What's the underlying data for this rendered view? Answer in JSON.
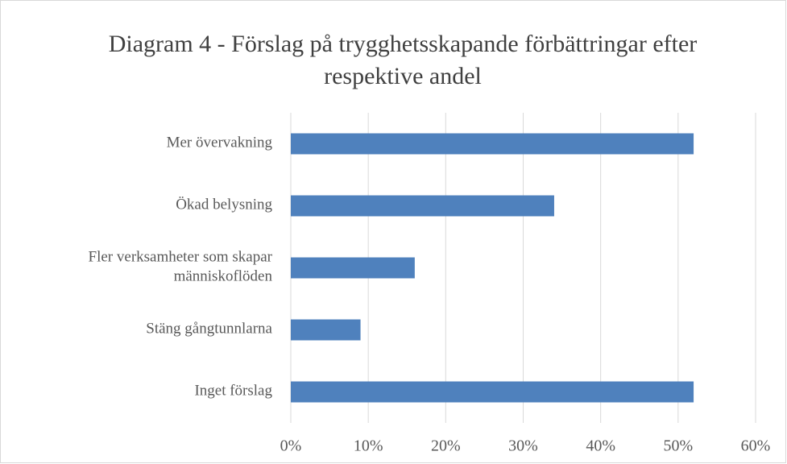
{
  "chart_data": {
    "type": "bar",
    "orientation": "horizontal",
    "title": "Diagram 4 - Förslag på trygghetsskapande förbättringar efter respektive andel",
    "categories": [
      "Mer övervakning",
      "Ökad belysning",
      "Fler verksamheter som skapar människoflöden",
      "Stäng gångtunnlarna",
      "Inget förslag"
    ],
    "values": [
      52,
      34,
      16,
      9,
      52
    ],
    "color": "#4f81bd",
    "xlim": [
      0,
      60
    ],
    "xticks": [
      {
        "value": 0,
        "label": "0%"
      },
      {
        "value": 10,
        "label": "10%"
      },
      {
        "value": 20,
        "label": "20%"
      },
      {
        "value": 30,
        "label": "30%"
      },
      {
        "value": 40,
        "label": "40%"
      },
      {
        "value": 50,
        "label": "50%"
      },
      {
        "value": 60,
        "label": "60%"
      }
    ],
    "grid": true
  }
}
